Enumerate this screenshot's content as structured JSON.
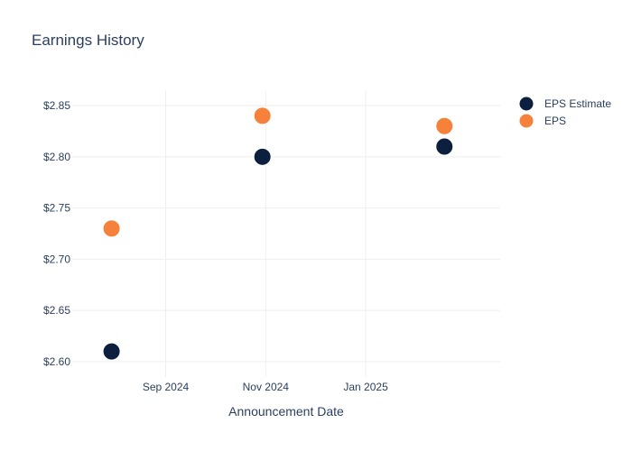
{
  "chart_data": {
    "type": "scatter",
    "title": "Earnings History",
    "xlabel": "Announcement Date",
    "ylabel": "",
    "x_ticks": [
      {
        "date": "2024-09-01",
        "label": "Sep 2024"
      },
      {
        "date": "2024-11-01",
        "label": "Nov 2024"
      },
      {
        "date": "2025-01-01",
        "label": "Jan 2025"
      }
    ],
    "y_ticks": [
      2.6,
      2.65,
      2.7,
      2.75,
      2.8,
      2.85
    ],
    "y_tick_labels": [
      "$2.60",
      "$2.65",
      "$2.70",
      "$2.75",
      "$2.80",
      "$2.85"
    ],
    "xlim": [
      "2024-07-06",
      "2025-03-24"
    ],
    "ylim": [
      2.585,
      2.865
    ],
    "legend_position": "top-right",
    "grid": true,
    "series": [
      {
        "name": "EPS Estimate",
        "color": "#0d1f3f",
        "points": [
          {
            "x": "2024-07-30",
            "y": 2.61
          },
          {
            "x": "2024-10-30",
            "y": 2.8
          },
          {
            "x": "2025-02-18",
            "y": 2.81
          }
        ]
      },
      {
        "name": "EPS",
        "color": "#f5813a",
        "points": [
          {
            "x": "2024-07-30",
            "y": 2.73
          },
          {
            "x": "2024-10-30",
            "y": 2.84
          },
          {
            "x": "2025-02-18",
            "y": 2.83
          }
        ]
      }
    ]
  }
}
